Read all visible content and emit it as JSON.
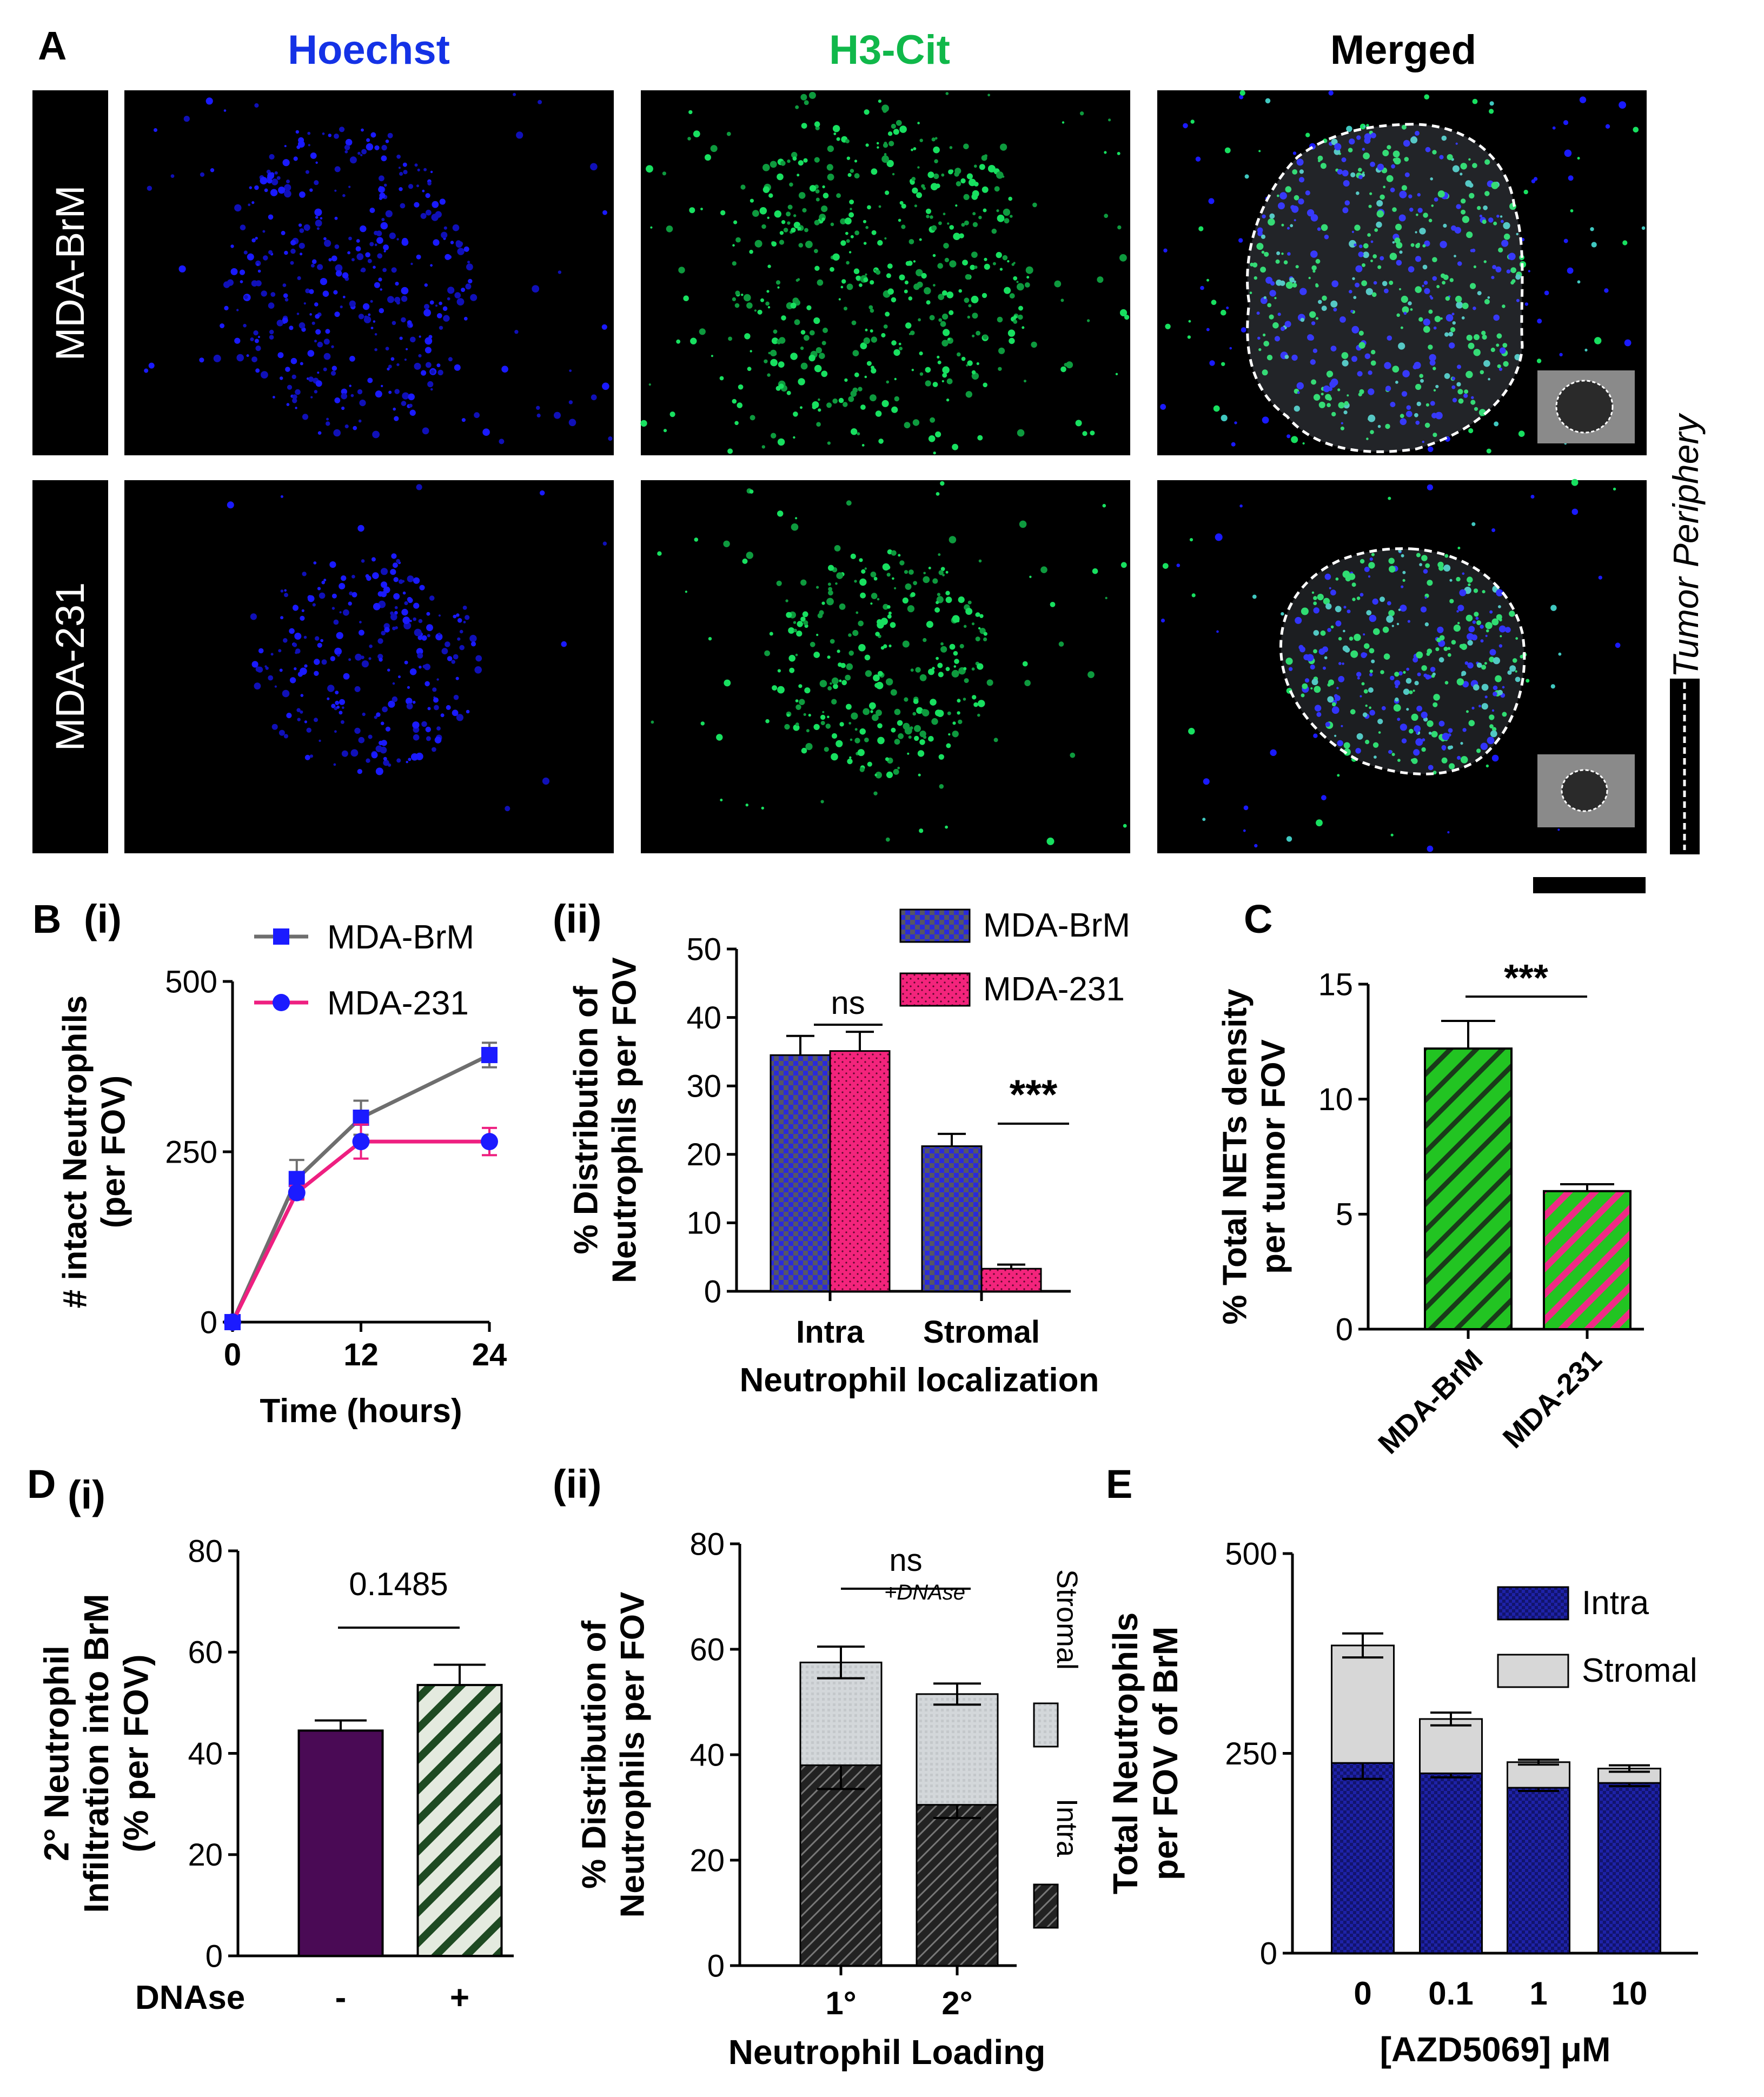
{
  "panel_A": {
    "label": "A",
    "channels": [
      "Hoechst",
      "H3-Cit",
      "Merged"
    ],
    "channel_colors": [
      "#1432e6",
      "#10b84a",
      "#000000"
    ],
    "rows": [
      "MDA-BrM",
      "MDA-231"
    ],
    "side_label": "Tumor Periphery"
  },
  "panel_B": {
    "label": "B",
    "sub_i": "(i)",
    "sub_ii": "(ii)"
  },
  "panel_C": {
    "label": "C"
  },
  "panel_D": {
    "label": "D",
    "sub_i": "(i)",
    "sub_ii": "(ii)",
    "xaxis_prefix": "DNAse",
    "dnase_annotation": "+DNAse"
  },
  "panel_E": {
    "label": "E"
  },
  "chart_data": [
    {
      "id": "B_i",
      "type": "line",
      "x": [
        0,
        6,
        12,
        24
      ],
      "xlabel": "Time (hours)",
      "ylabel_lines": [
        "# intact Neutrophils",
        "(per FOV)"
      ],
      "ylim": [
        0,
        500
      ],
      "yticks": [
        0,
        250,
        500
      ],
      "xticks": [
        0,
        12,
        24
      ],
      "series": [
        {
          "name": "MDA-BrM",
          "values": [
            0,
            210,
            300,
            392
          ],
          "errors": [
            0,
            28,
            25,
            18
          ],
          "color": "#6e6e6e",
          "marker": "square"
        },
        {
          "name": "MDA-231",
          "values": [
            0,
            190,
            265,
            265
          ],
          "errors": [
            0,
            10,
            25,
            20
          ],
          "color": "#ee1f80",
          "marker": "circle"
        }
      ]
    },
    {
      "id": "B_ii",
      "type": "bar",
      "categories": [
        "Intra",
        "Stromal"
      ],
      "xlabel": "Neutrophil localization",
      "ylabel_lines": [
        "% Distribution of",
        "Neutrophils per FOV"
      ],
      "ylim": [
        0,
        50
      ],
      "yticks": [
        0,
        10,
        20,
        30,
        40,
        50
      ],
      "series": [
        {
          "name": "MDA-BrM",
          "values": [
            34.5,
            21.2
          ],
          "errors": [
            2.8,
            1.8
          ],
          "color": "#2a2adb"
        },
        {
          "name": "MDA-231",
          "values": [
            35.1,
            3.3
          ],
          "errors": [
            2.8,
            0.6
          ],
          "color": "#f3247c"
        }
      ],
      "annotations": [
        "ns",
        "***"
      ]
    },
    {
      "id": "C",
      "type": "bar",
      "categories": [
        "MDA-BrM",
        "MDA-231"
      ],
      "ylabel_lines": [
        "% Total NETs density",
        "per  tumor FOV"
      ],
      "ylim": [
        0,
        15
      ],
      "yticks": [
        0,
        5,
        10,
        15
      ],
      "values": [
        12.2,
        6.0
      ],
      "errors": [
        1.2,
        0.3
      ],
      "colors": [
        "#1fbf1f",
        "#1fbf1f"
      ],
      "annotations": [
        "***"
      ]
    },
    {
      "id": "D_i",
      "type": "bar",
      "categories": [
        "-",
        "+"
      ],
      "ylabel_lines": [
        "2° Neutrophil",
        "Infiltration into BrM",
        "(% per FOV)"
      ],
      "ylim": [
        0,
        80
      ],
      "yticks": [
        0,
        20,
        40,
        60,
        80
      ],
      "values": [
        44.5,
        53.5
      ],
      "errors": [
        2.0,
        4.0
      ],
      "colors": [
        "#4a0a55",
        "#1e4a22"
      ],
      "annotations": [
        "0.1485"
      ]
    },
    {
      "id": "D_ii",
      "type": "bar",
      "categories": [
        "1°",
        "2°"
      ],
      "xlabel": "Neutrophil Loading",
      "ylabel_lines": [
        "% Distribution of",
        "Neutrophils per FOV"
      ],
      "ylim": [
        0,
        80
      ],
      "yticks": [
        0,
        20,
        40,
        60,
        80
      ],
      "series": [
        {
          "name": "Intra",
          "values": [
            38,
            30.5
          ],
          "errors": [
            4.5,
            2.5
          ],
          "color": "#222222"
        },
        {
          "name": "Stromal",
          "values": [
            19.5,
            21
          ],
          "errors": [
            3.0,
            2.0
          ],
          "color": "#d3d7da"
        }
      ],
      "annotations": [
        "ns"
      ]
    },
    {
      "id": "E",
      "type": "bar",
      "categories": [
        "0",
        "0.1",
        "1",
        "10"
      ],
      "xlabel": "[AZD5069] μM",
      "ylabel_lines": [
        "Total Neutrophils",
        "per FOV of BrM"
      ],
      "ylim": [
        0,
        500
      ],
      "yticks": [
        0,
        250,
        500
      ],
      "series": [
        {
          "name": "Intra",
          "values": [
            238,
            225,
            207,
            213
          ],
          "errors": [
            20,
            5,
            4,
            4
          ],
          "color": "#1e22a8"
        },
        {
          "name": "Stromal",
          "values": [
            147,
            68,
            32,
            18
          ],
          "errors": [
            15,
            8,
            3,
            4
          ],
          "color": "#d7d7d7"
        }
      ]
    }
  ]
}
